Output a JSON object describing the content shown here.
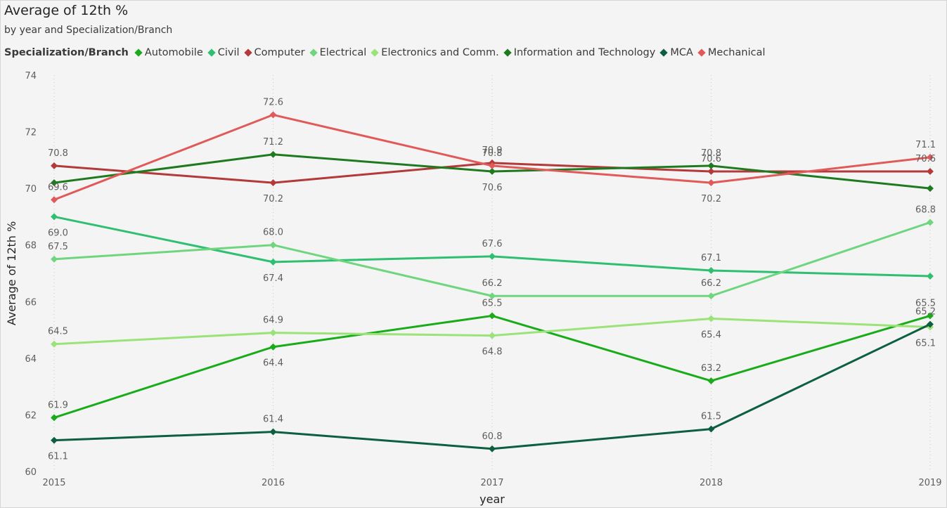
{
  "header": {
    "title": "Average of 12th %",
    "subtitle": "by year and Specialization/Branch"
  },
  "legend": {
    "title": "Specialization/Branch",
    "position": "top-left"
  },
  "chart_data": {
    "type": "line",
    "title": "Average of 12th %",
    "subtitle": "by year and Specialization/Branch",
    "xlabel": "year",
    "ylabel": "Average of 12th %",
    "categories": [
      "2015",
      "2016",
      "2017",
      "2018",
      "2019"
    ],
    "ylim": [
      60,
      74
    ],
    "yticks": [
      60,
      62,
      64,
      66,
      68,
      70,
      72,
      74
    ],
    "grid": "vertical-dotted",
    "series": [
      {
        "name": "Automobile",
        "color": "#1aab1a",
        "values": [
          61.9,
          64.4,
          65.5,
          63.2,
          65.5
        ],
        "labels": [
          "61.9",
          "64.4",
          "65.5",
          "63.2",
          "65.5"
        ]
      },
      {
        "name": "Civil",
        "color": "#2fbf71",
        "values": [
          69.0,
          67.4,
          67.6,
          67.1,
          66.9
        ],
        "labels": [
          "69.0",
          "67.4",
          "67.6",
          "67.1",
          ""
        ]
      },
      {
        "name": "Computer",
        "color": "#b23a3a",
        "values": [
          70.8,
          70.2,
          70.9,
          70.6,
          70.6
        ],
        "labels": [
          "70.8",
          "70.2",
          "70.9",
          "70.6",
          "70.6"
        ]
      },
      {
        "name": "Electrical",
        "color": "#6fd57f",
        "values": [
          67.5,
          68.0,
          66.2,
          66.2,
          68.8
        ],
        "labels": [
          "67.5",
          "68.0",
          "66.2",
          "66.2",
          "68.8"
        ]
      },
      {
        "name": "Electronics and Comm.",
        "color": "#9be378",
        "values": [
          64.5,
          64.9,
          64.8,
          65.4,
          65.1
        ],
        "labels": [
          "64.5",
          "64.9",
          "64.8",
          "65.4",
          "65.1"
        ]
      },
      {
        "name": "Information and Technology",
        "color": "#1f7a1f",
        "values": [
          70.2,
          71.2,
          70.6,
          70.8,
          70.0
        ],
        "labels": [
          "",
          "71.2",
          "70.6",
          "70.8",
          ""
        ]
      },
      {
        "name": "MCA",
        "color": "#0c5f3f",
        "values": [
          61.1,
          61.4,
          60.8,
          61.5,
          65.2
        ],
        "labels": [
          "61.1",
          "61.4",
          "60.8",
          "61.5",
          "65.2"
        ]
      },
      {
        "name": "Mechanical",
        "color": "#e05a5a",
        "values": [
          69.6,
          72.6,
          70.8,
          70.2,
          71.1
        ],
        "labels": [
          "69.6",
          "72.6",
          "70.8",
          "70.2",
          "71.1"
        ]
      }
    ]
  }
}
